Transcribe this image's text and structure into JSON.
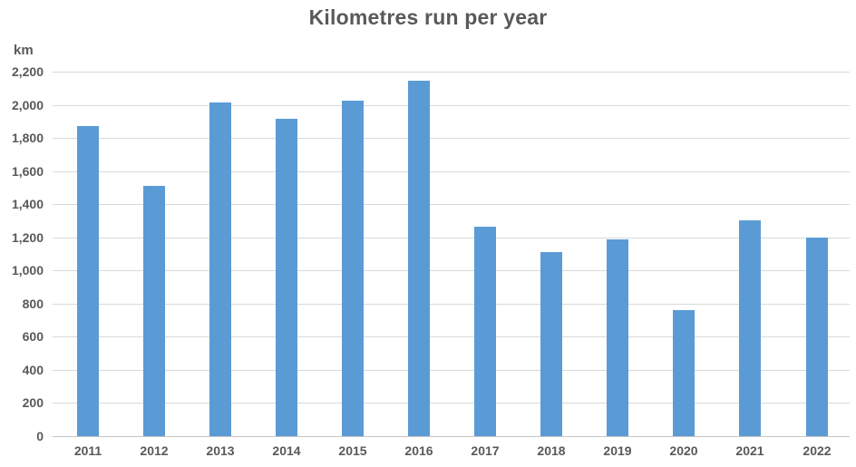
{
  "chart": {
    "title": "Kilometres run per year",
    "y_axis_unit": "km"
  },
  "colors": {
    "bar": "#5B9BD5",
    "text": "#595959",
    "gridline": "#D9D9D9",
    "baseline": "#C6C6C6",
    "background": "#FFFFFF"
  },
  "chart_data": {
    "type": "bar",
    "title": "Kilometres run per year",
    "xlabel": "",
    "ylabel": "km",
    "categories": [
      "2011",
      "2012",
      "2013",
      "2014",
      "2015",
      "2016",
      "2017",
      "2018",
      "2019",
      "2020",
      "2021",
      "2022"
    ],
    "values": [
      1870,
      1510,
      2015,
      1915,
      2025,
      2145,
      1265,
      1110,
      1190,
      760,
      1305,
      1200
    ],
    "ylim": [
      0,
      2200
    ],
    "ytick_step": 200,
    "ytick_labels": [
      "0",
      "200",
      "400",
      "600",
      "800",
      "1,000",
      "1,200",
      "1,400",
      "1,600",
      "1,800",
      "2,000",
      "2,200"
    ],
    "grid": true,
    "legend": false,
    "legend_position": "none",
    "bar_color": "#5B9BD5"
  }
}
